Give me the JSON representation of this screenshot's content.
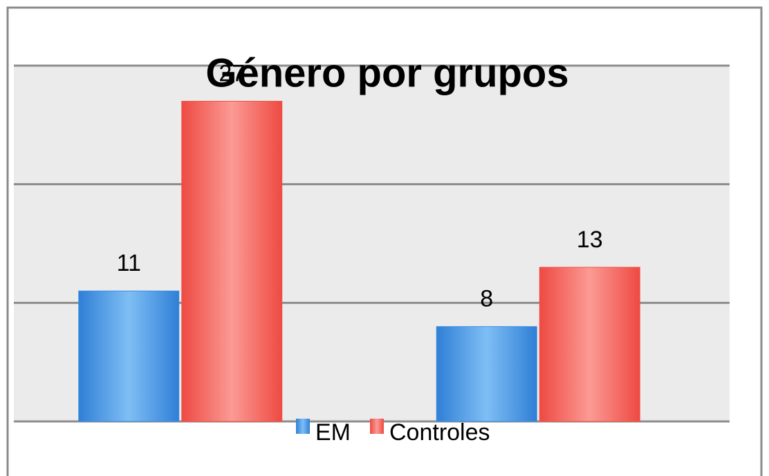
{
  "chart_data": {
    "type": "bar",
    "title": "Género por grupos",
    "categories": [
      null,
      null
    ],
    "series": [
      {
        "name": "EM",
        "color": "#3d8fe0",
        "values": [
          11,
          8
        ]
      },
      {
        "name": "Controles",
        "color": "#f2544c",
        "values": [
          27,
          13
        ]
      }
    ],
    "ylim": [
      0,
      30
    ],
    "yticks": [
      0,
      10,
      20,
      30
    ],
    "grid": true,
    "legend": "bottom"
  }
}
